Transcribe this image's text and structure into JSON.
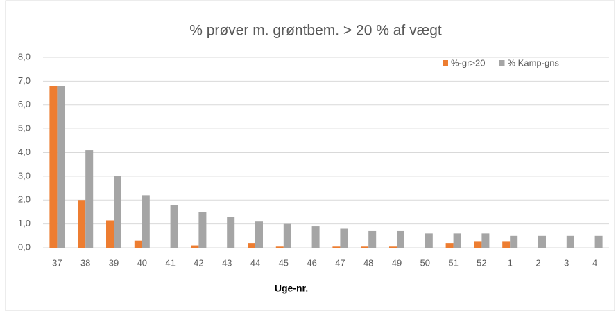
{
  "chart_data": {
    "type": "bar",
    "title": "% prøver m. grøntbem. > 20 % af vægt",
    "x_label": "Uge-nr.",
    "categories": [
      "37",
      "38",
      "39",
      "40",
      "41",
      "42",
      "43",
      "44",
      "45",
      "46",
      "47",
      "48",
      "49",
      "50",
      "51",
      "52",
      "1",
      "2",
      "3",
      "4"
    ],
    "series": [
      {
        "name": "%-gr>20",
        "color": "#ed7d31",
        "values": [
          6.8,
          2.0,
          1.15,
          0.3,
          0,
          0.1,
          0,
          0.2,
          0.05,
          0,
          0.05,
          0.05,
          0.05,
          0,
          0.2,
          0.25,
          0.25,
          0,
          0,
          0
        ]
      },
      {
        "name": "% Kamp-gns",
        "color": "#a5a5a5",
        "values": [
          6.8,
          4.1,
          3.0,
          2.2,
          1.8,
          1.5,
          1.3,
          1.1,
          1.0,
          0.9,
          0.8,
          0.7,
          0.7,
          0.6,
          0.6,
          0.6,
          0.5,
          0.5,
          0.5,
          0.5
        ]
      }
    ],
    "ylim": [
      0,
      8
    ],
    "yticks": [
      {
        "value": 0,
        "label": "0,0"
      },
      {
        "value": 1,
        "label": "1,0"
      },
      {
        "value": 2,
        "label": "2,0"
      },
      {
        "value": 3,
        "label": "3,0"
      },
      {
        "value": 4,
        "label": "4,0"
      },
      {
        "value": 5,
        "label": "5,0"
      },
      {
        "value": 6,
        "label": "6,0"
      },
      {
        "value": 7,
        "label": "7,0"
      },
      {
        "value": 8,
        "label": "8,0"
      }
    ],
    "grid": true,
    "legend": "top-right"
  }
}
